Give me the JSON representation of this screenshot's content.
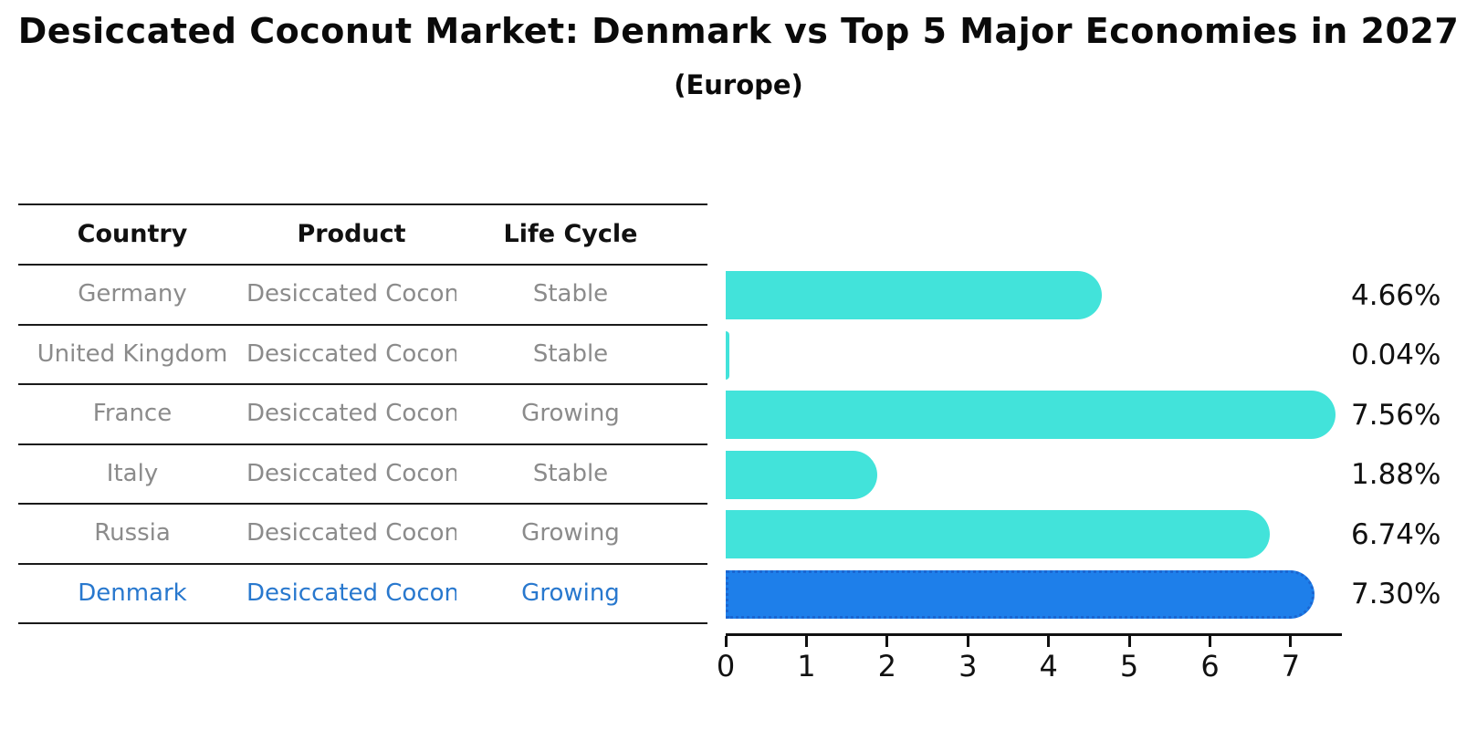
{
  "title": "Desiccated Coconut Market: Denmark vs Top 5 Major Economies in 2027",
  "subtitle": "(Europe)",
  "table": {
    "headers": [
      "Country",
      "Product",
      "Life Cycle"
    ],
    "rows": [
      {
        "country": "Germany",
        "product": "Desiccated Coconut",
        "life_cycle": "Stable"
      },
      {
        "country": "United Kingdom",
        "product": "Desiccated Coconut",
        "life_cycle": "Stable"
      },
      {
        "country": "France",
        "product": "Desiccated Coconut",
        "life_cycle": "Growing"
      },
      {
        "country": "Italy",
        "product": "Desiccated Coconut",
        "life_cycle": "Stable"
      },
      {
        "country": "Russia",
        "product": "Desiccated Coconut",
        "life_cycle": "Growing"
      },
      {
        "country": "Denmark",
        "product": "Desiccated Coconut",
        "life_cycle": "Growing"
      }
    ]
  },
  "chart_data": {
    "type": "bar",
    "orientation": "horizontal",
    "title": "Desiccated Coconut Market: Denmark vs Top 5 Major Economies in 2027 (Europe)",
    "categories": [
      "Germany",
      "United Kingdom",
      "France",
      "Italy",
      "Russia",
      "Denmark"
    ],
    "values": [
      4.66,
      0.04,
      7.56,
      1.88,
      6.74,
      7.3
    ],
    "value_labels": [
      "4.66%",
      "0.04%",
      "7.56%",
      "1.88%",
      "6.74%",
      "7.30%"
    ],
    "x_ticks": [
      "0",
      "1",
      "2",
      "3",
      "4",
      "5",
      "6",
      "7"
    ],
    "xlim": [
      0,
      7.6
    ],
    "grid": false,
    "legend": "none",
    "highlight_index": 5,
    "bar_color": "#42E3DA",
    "highlight_color": "#1E7FEA",
    "highlight_border_color": "#1B66D1",
    "highlight_text_color": "#2878CE"
  }
}
